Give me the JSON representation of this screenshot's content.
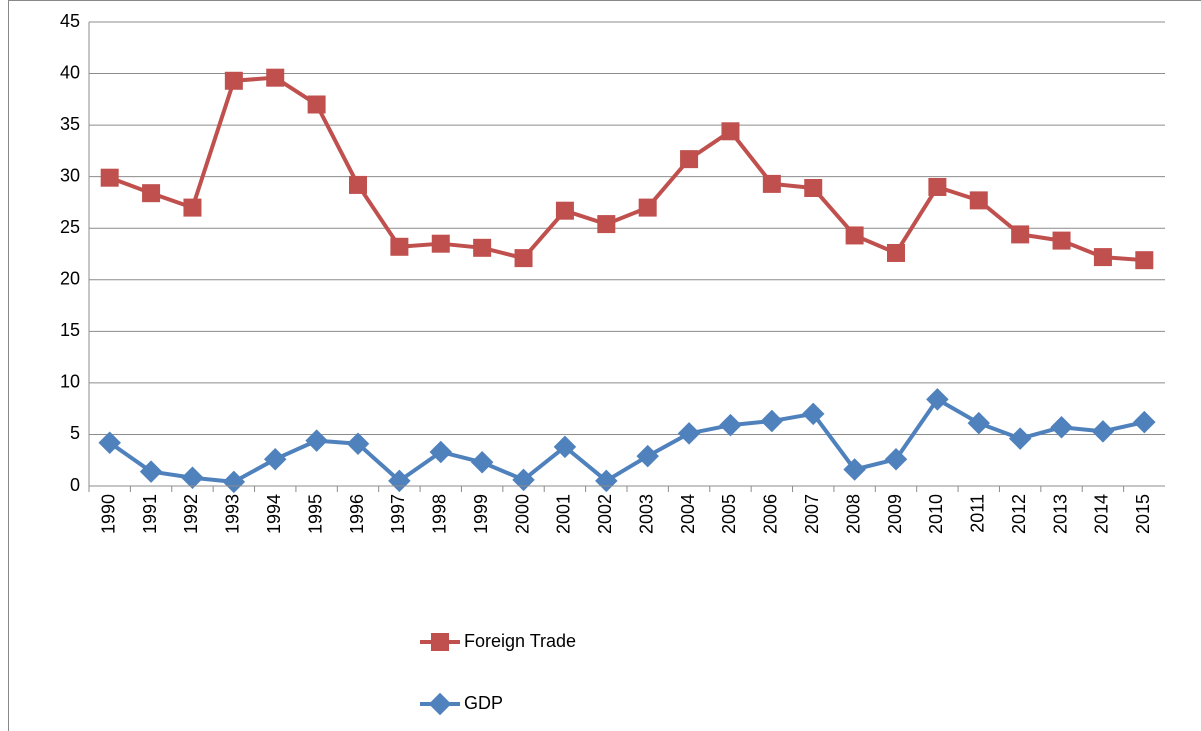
{
  "chart_data": {
    "type": "line",
    "categories": [
      "1990",
      "1991",
      "1992",
      "1993",
      "1994",
      "1995",
      "1996",
      "1997",
      "1998",
      "1999",
      "2000",
      "2001",
      "2002",
      "2003",
      "2004",
      "2005",
      "2006",
      "2007",
      "2008",
      "2009",
      "2010",
      "2011",
      "2012",
      "2013",
      "2014",
      "2015"
    ],
    "series": [
      {
        "name": "Foreign Trade",
        "color": "#c0504d",
        "marker": "square",
        "values": [
          29.9,
          28.4,
          27.0,
          39.3,
          39.6,
          37.0,
          29.2,
          23.2,
          23.5,
          23.1,
          22.1,
          26.7,
          25.4,
          27.0,
          31.7,
          34.4,
          29.3,
          28.9,
          24.3,
          22.6,
          29.0,
          27.7,
          24.4,
          23.8,
          22.2,
          21.9
        ]
      },
      {
        "name": "GDP",
        "color": "#4f81bd",
        "marker": "diamond",
        "values": [
          4.2,
          1.4,
          0.8,
          0.4,
          2.6,
          4.4,
          4.1,
          0.5,
          3.3,
          2.3,
          0.6,
          3.8,
          0.5,
          2.9,
          5.1,
          5.9,
          6.3,
          7.0,
          1.6,
          2.6,
          8.4,
          6.1,
          4.6,
          5.7,
          5.3,
          6.2
        ]
      }
    ],
    "ylim": [
      0,
      45
    ],
    "yticks": [
      0,
      5,
      10,
      15,
      20,
      25,
      30,
      35,
      40,
      45
    ],
    "grid": true,
    "legend": "bottom"
  }
}
